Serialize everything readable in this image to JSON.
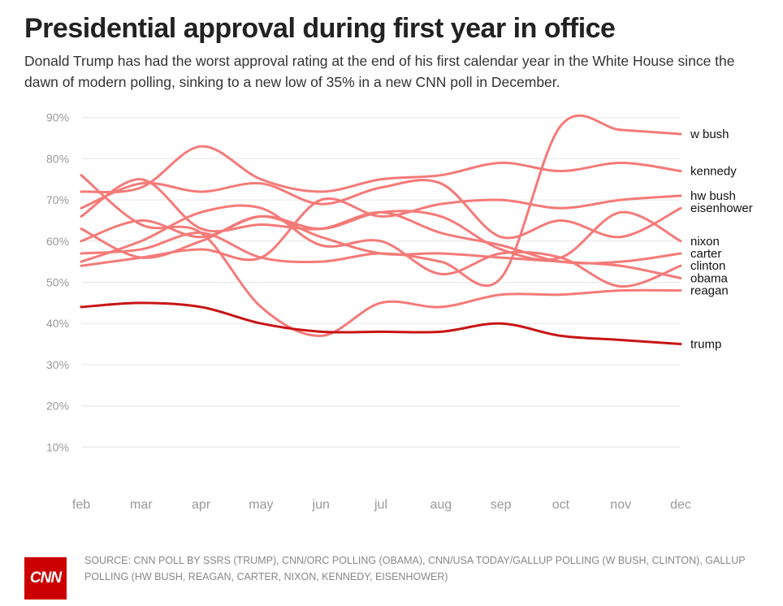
{
  "title": "Presidential approval during first year in office",
  "subtitle": "Donald Trump has had the worst approval rating at the end of his first calendar year in the White House since the dawn of modern polling, sinking to a new low of 35% in a new CNN poll in December.",
  "source": "SOURCE: CNN POLL BY SSRS (TRUMP), CNN/ORC POLLING (OBAMA), CNN/USA TODAY/GALLUP POLLING (W BUSH, CLINTON), GALLUP POLLING (HW BUSH, REAGAN, CARTER, NIXON, KENNEDY, EISENHOWER)",
  "logo_text": "CNN",
  "colors": {
    "highlight": "#c81414",
    "others": "#f47a78",
    "grid": "#e6e6e6",
    "tick": "#999999",
    "label": "#111111"
  },
  "chart_data": {
    "type": "line",
    "categories": [
      "feb",
      "mar",
      "apr",
      "may",
      "jun",
      "jul",
      "aug",
      "sep",
      "oct",
      "nov",
      "dec"
    ],
    "ylim": [
      0,
      90
    ],
    "yticks": [
      "10%",
      "20%",
      "30%",
      "40%",
      "50%",
      "60%",
      "70%",
      "80%",
      "90%"
    ],
    "grid": true,
    "series": [
      {
        "name": "w bush",
        "values": [
          57,
          58,
          62,
          56,
          55,
          57,
          55,
          51,
          88,
          87,
          86
        ]
      },
      {
        "name": "kennedy",
        "values": [
          72,
          73,
          83,
          75,
          72,
          75,
          76,
          79,
          77,
          79,
          77
        ]
      },
      {
        "name": "hw bush",
        "values": [
          54,
          56,
          58,
          56,
          70,
          66,
          69,
          70,
          68,
          70,
          71
        ]
      },
      {
        "name": "eisenhower",
        "values": [
          68,
          74,
          72,
          74,
          69,
          73,
          74,
          61,
          65,
          61,
          68
        ]
      },
      {
        "name": "nixon",
        "values": [
          60,
          65,
          61,
          66,
          63,
          67,
          66,
          58,
          56,
          67,
          60
        ]
      },
      {
        "name": "carter",
        "values": [
          66,
          75,
          63,
          64,
          63,
          67,
          62,
          59,
          55,
          55,
          57
        ]
      },
      {
        "name": "clinton",
        "values": [
          55,
          60,
          67,
          68,
          59,
          60,
          52,
          57,
          56,
          49,
          54
        ]
      },
      {
        "name": "obama",
        "values": [
          63,
          56,
          60,
          66,
          61,
          57,
          57,
          56,
          55,
          54,
          51
        ]
      },
      {
        "name": "reagan",
        "values": [
          76,
          64,
          62,
          44,
          37,
          45,
          44,
          47,
          47,
          48,
          48
        ]
      },
      {
        "name": "trump",
        "highlight": true,
        "values": [
          44,
          45,
          44,
          40,
          38,
          38,
          38,
          40,
          37,
          36,
          35
        ]
      }
    ]
  }
}
